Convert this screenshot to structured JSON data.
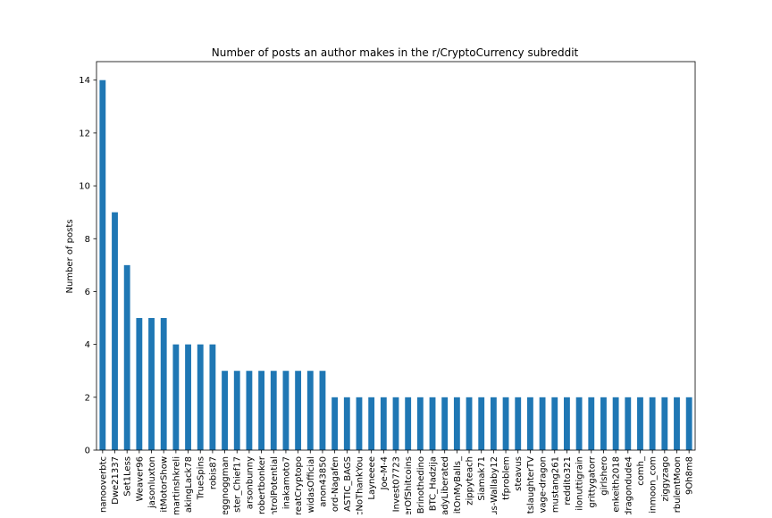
{
  "chart_data": {
    "type": "bar",
    "title": "Number of posts an author makes in the r/CryptoCurrency subreddit",
    "xlabel": "",
    "ylabel": "Number of posts",
    "ylim": [
      0,
      14.7
    ],
    "yticks": [
      0,
      2,
      4,
      6,
      8,
      10,
      12,
      14
    ],
    "grid": false,
    "bar_color": "#1f77b4",
    "categories": [
      "nanooverbtc",
      "Dwe21337",
      "Set1Less",
      "Weaver96",
      "jasonluxton",
      "itMotorShow",
      "martinshkreli",
      "akingLack78",
      "TrueSpins",
      "robis87",
      "eggnoggman",
      "ster_Chief17",
      "arsonbunny",
      "robertbonker",
      "ntrolPotential",
      "inakamoto7",
      "reatCryptopo",
      "widasOfficial",
      "anon43850",
      "ord-Nagafen",
      "ASTIC_BAGS",
      "cNoThankYou",
      "Layneeee",
      "Joe-M-4",
      "Invest07723",
      "erOfShitcoins",
      "Brinothedino",
      "BTC_Hadzija",
      "adyLiberated",
      "itOnMyBalls_",
      "zippyteach",
      "Siamak71",
      "us-Wallaby12",
      "tfproblem",
      "steavus",
      "tslaughterTV",
      "vage-dragon",
      "mustang261",
      "reddito321",
      "ilonuttigrain",
      "grittygatorr",
      "girlshero",
      "enkeith2018",
      "dragondude4",
      "comh_",
      "inmoon_com",
      "ziggyzago",
      "rbulentMoon",
      "9Oh8m8"
    ],
    "values": [
      14,
      9,
      7,
      5,
      5,
      5,
      4,
      4,
      4,
      4,
      3,
      3,
      3,
      3,
      3,
      3,
      3,
      3,
      3,
      2,
      2,
      2,
      2,
      2,
      2,
      2,
      2,
      2,
      2,
      2,
      2,
      2,
      2,
      2,
      2,
      2,
      2,
      2,
      2,
      2,
      2,
      2,
      2,
      2,
      2,
      2,
      2,
      2,
      2
    ]
  }
}
